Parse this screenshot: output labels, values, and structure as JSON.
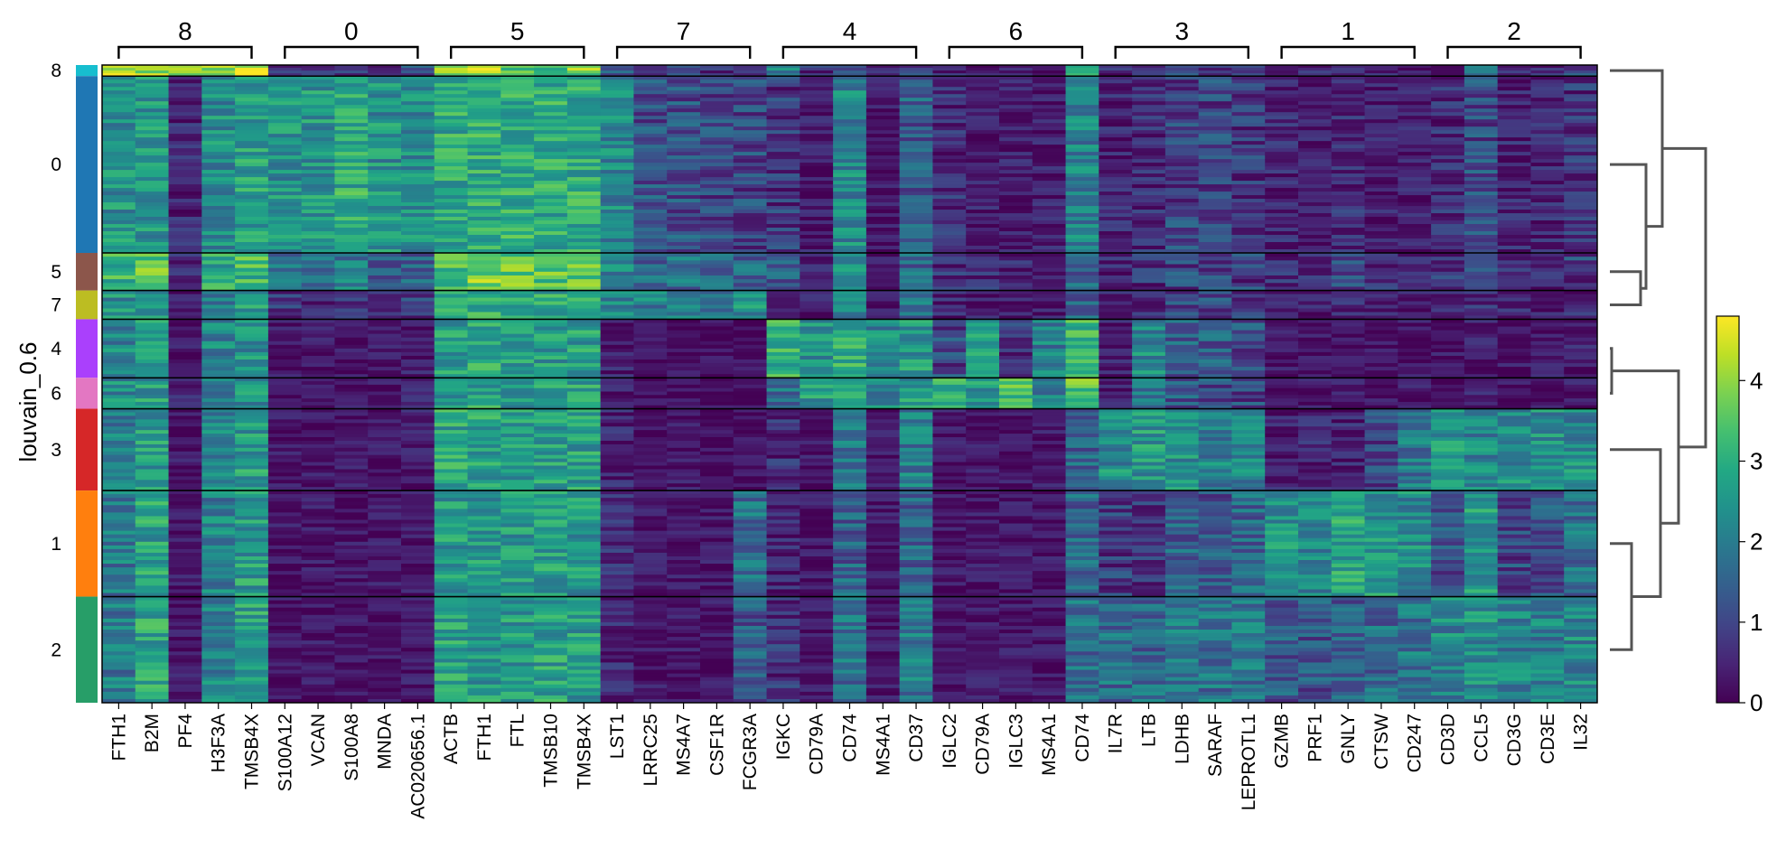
{
  "chart_data": {
    "type": "heatmap",
    "group_by_label": "louvain_0.6",
    "row_groups": [
      "8",
      "0",
      "5",
      "7",
      "4",
      "6",
      "3",
      "1",
      "2"
    ],
    "row_group_colors": [
      "#17becf",
      "#1f77b4",
      "#8c564b",
      "#bcbd22",
      "#aa40fc",
      "#e377c2",
      "#d62728",
      "#ff7f0e",
      "#279e68"
    ],
    "row_group_relative_cells": [
      1.0,
      16.0,
      3.4,
      2.6,
      5.3,
      2.8,
      7.4,
      9.6,
      9.6
    ],
    "gene_groups": [
      {
        "label": "8",
        "genes": [
          "FTH1",
          "B2M",
          "PF4",
          "H3F3A",
          "TMSB4X"
        ]
      },
      {
        "label": "0",
        "genes": [
          "S100A12",
          "VCAN",
          "S100A8",
          "MNDA",
          "AC020656.1"
        ]
      },
      {
        "label": "5",
        "genes": [
          "ACTB",
          "FTH1",
          "FTL",
          "TMSB10",
          "TMSB4X"
        ]
      },
      {
        "label": "7",
        "genes": [
          "LST1",
          "LRRC25",
          "MS4A7",
          "CSF1R",
          "FCGR3A"
        ]
      },
      {
        "label": "4",
        "genes": [
          "IGKC",
          "CD79A",
          "CD74",
          "MS4A1",
          "CD37"
        ]
      },
      {
        "label": "6",
        "genes": [
          "IGLC2",
          "CD79A",
          "IGLC3",
          "MS4A1",
          "CD74"
        ]
      },
      {
        "label": "3",
        "genes": [
          "IL7R",
          "LTB",
          "LDHB",
          "SARAF",
          "LEPROTL1"
        ]
      },
      {
        "label": "1",
        "genes": [
          "GZMB",
          "PRF1",
          "GNLY",
          "CTSW",
          "CD247"
        ]
      },
      {
        "label": "2",
        "genes": [
          "CD3D",
          "CCL5",
          "CD3G",
          "CD3E",
          "IL32"
        ]
      }
    ],
    "mean_expression": [
      [
        4.2,
        4.0,
        3.8,
        4.0,
        4.3,
        0.8,
        0.6,
        0.8,
        0.6,
        1.0,
        3.8,
        4.2,
        3.6,
        3.2,
        3.8,
        1.6,
        0.9,
        0.9,
        0.8,
        0.7,
        2.0,
        0.7,
        1.0,
        0.4,
        0.9,
        0.5,
        0.4,
        0.4,
        0.4,
        2.5,
        0.6,
        0.7,
        0.9,
        0.8,
        0.9,
        0.4,
        0.5,
        0.5,
        0.5,
        0.5,
        0.5,
        1.8,
        0.5,
        0.5,
        0.9
      ],
      [
        2.4,
        2.5,
        0.5,
        2.3,
        2.7,
        2.4,
        2.5,
        2.9,
        2.4,
        2.3,
        2.9,
        3.0,
        3.0,
        2.9,
        2.9,
        2.2,
        1.2,
        1.2,
        1.0,
        1.0,
        0.8,
        0.4,
        2.2,
        0.3,
        1.4,
        0.6,
        0.4,
        0.4,
        0.4,
        2.1,
        0.5,
        0.6,
        1.0,
        1.0,
        0.8,
        0.5,
        0.4,
        0.6,
        0.4,
        0.4,
        0.6,
        1.1,
        0.5,
        0.5,
        0.7
      ],
      [
        3.0,
        3.6,
        0.5,
        2.8,
        3.2,
        1.6,
        1.5,
        2.0,
        1.4,
        1.4,
        3.4,
        3.8,
        3.6,
        3.5,
        3.6,
        2.2,
        1.5,
        1.7,
        1.5,
        1.5,
        1.3,
        0.6,
        2.2,
        0.3,
        1.6,
        0.7,
        0.6,
        0.5,
        0.4,
        1.6,
        0.5,
        0.7,
        1.0,
        0.9,
        0.9,
        0.6,
        0.5,
        0.9,
        0.6,
        0.5,
        0.7,
        0.9,
        0.6,
        0.6,
        0.9
      ],
      [
        2.4,
        2.7,
        0.5,
        2.1,
        2.7,
        0.7,
        0.5,
        0.6,
        0.5,
        0.8,
        3.0,
        3.0,
        3.0,
        2.8,
        3.0,
        2.3,
        2.1,
        1.8,
        1.6,
        2.4,
        0.6,
        0.4,
        2.3,
        0.3,
        1.8,
        0.5,
        0.4,
        0.4,
        0.4,
        1.6,
        0.4,
        0.5,
        0.9,
        1.0,
        0.8,
        0.4,
        0.4,
        0.5,
        0.4,
        0.4,
        0.5,
        0.6,
        0.5,
        0.4,
        0.6
      ],
      [
        2.2,
        2.5,
        0.3,
        2.1,
        2.4,
        0.3,
        0.3,
        0.3,
        0.3,
        0.4,
        2.6,
        2.8,
        2.6,
        2.5,
        2.6,
        0.4,
        0.2,
        0.2,
        0.2,
        0.2,
        3.0,
        2.4,
        3.0,
        2.2,
        2.5,
        1.0,
        2.6,
        0.8,
        2.0,
        3.1,
        0.4,
        2.3,
        1.4,
        1.4,
        1.1,
        0.3,
        0.3,
        0.3,
        0.3,
        0.3,
        0.3,
        0.4,
        0.3,
        0.3,
        0.4
      ],
      [
        2.3,
        2.6,
        0.4,
        2.2,
        2.4,
        0.3,
        0.3,
        0.3,
        0.3,
        0.4,
        2.7,
        2.8,
        2.6,
        2.6,
        2.7,
        0.4,
        0.2,
        0.2,
        0.2,
        0.2,
        1.8,
        2.5,
        3.0,
        2.2,
        2.5,
        3.1,
        2.6,
        3.3,
        2.0,
        3.4,
        0.4,
        1.9,
        1.3,
        1.2,
        1.0,
        0.3,
        0.3,
        0.3,
        0.3,
        0.3,
        0.3,
        0.4,
        0.3,
        0.3,
        0.4
      ],
      [
        2.0,
        2.6,
        0.3,
        2.2,
        2.6,
        0.3,
        0.3,
        0.3,
        0.3,
        0.4,
        2.8,
        2.7,
        2.6,
        2.7,
        2.7,
        0.5,
        0.2,
        0.3,
        0.2,
        0.2,
        0.6,
        0.3,
        1.8,
        0.3,
        2.0,
        0.3,
        0.3,
        0.3,
        0.3,
        1.5,
        2.3,
        2.5,
        2.4,
        2.1,
        2.2,
        0.4,
        0.5,
        0.5,
        1.0,
        1.9,
        2.5,
        2.2,
        2.4,
        2.3,
        2.3
      ],
      [
        1.9,
        2.7,
        0.3,
        2.1,
        2.6,
        0.3,
        0.3,
        0.3,
        0.3,
        0.3,
        2.6,
        2.6,
        2.5,
        2.6,
        2.5,
        0.6,
        0.3,
        0.3,
        0.3,
        1.8,
        0.5,
        0.3,
        1.5,
        0.3,
        1.6,
        0.3,
        0.3,
        0.3,
        0.3,
        1.5,
        0.8,
        0.7,
        1.5,
        1.2,
        1.6,
        2.4,
        2.2,
        2.7,
        2.5,
        2.3,
        1.2,
        2.6,
        1.0,
        1.2,
        1.8
      ],
      [
        2.0,
        2.8,
        0.3,
        2.2,
        2.7,
        0.3,
        0.3,
        0.3,
        0.3,
        0.3,
        2.7,
        2.6,
        2.6,
        2.7,
        2.6,
        0.5,
        0.3,
        0.3,
        0.3,
        1.4,
        0.7,
        0.3,
        1.8,
        0.3,
        2.0,
        0.3,
        0.3,
        0.3,
        0.3,
        1.7,
        1.7,
        1.6,
        1.9,
        1.8,
        1.9,
        1.3,
        1.2,
        1.4,
        1.6,
        1.9,
        2.2,
        2.4,
        2.1,
        2.1,
        2.2
      ]
    ],
    "colorbar": {
      "colormap": "viridis",
      "vmin": 0,
      "vmax": 4.8,
      "ticks": [
        0,
        1,
        2,
        3,
        4
      ]
    },
    "dendrogram": "right",
    "grid": false
  }
}
